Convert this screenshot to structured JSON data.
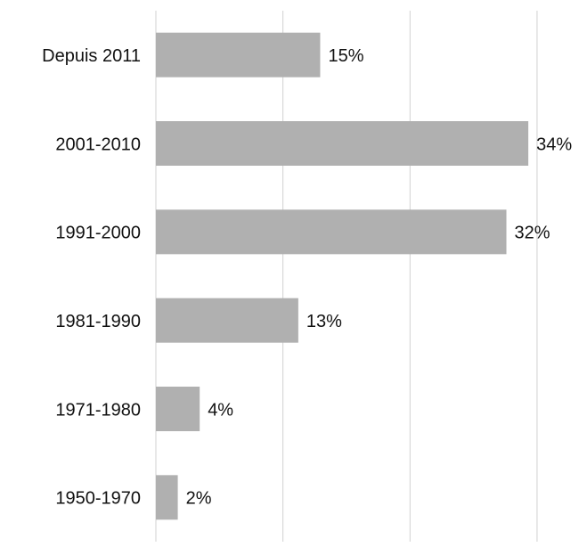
{
  "chart_data": {
    "type": "barh",
    "categories": [
      "Depuis 2011",
      "2001-2010",
      "1991-2000",
      "1981-1990",
      "1971-1980",
      "1950-1970"
    ],
    "values": [
      15,
      34,
      32,
      13,
      4,
      2
    ],
    "value_labels": [
      "15%",
      "34%",
      "32%",
      "13%",
      "4%",
      "2%"
    ],
    "color": "#b0b0b0",
    "xlim": [
      0,
      37
    ],
    "xticks": [
      0,
      11.6,
      23.2,
      34.8
    ],
    "grid": true
  }
}
